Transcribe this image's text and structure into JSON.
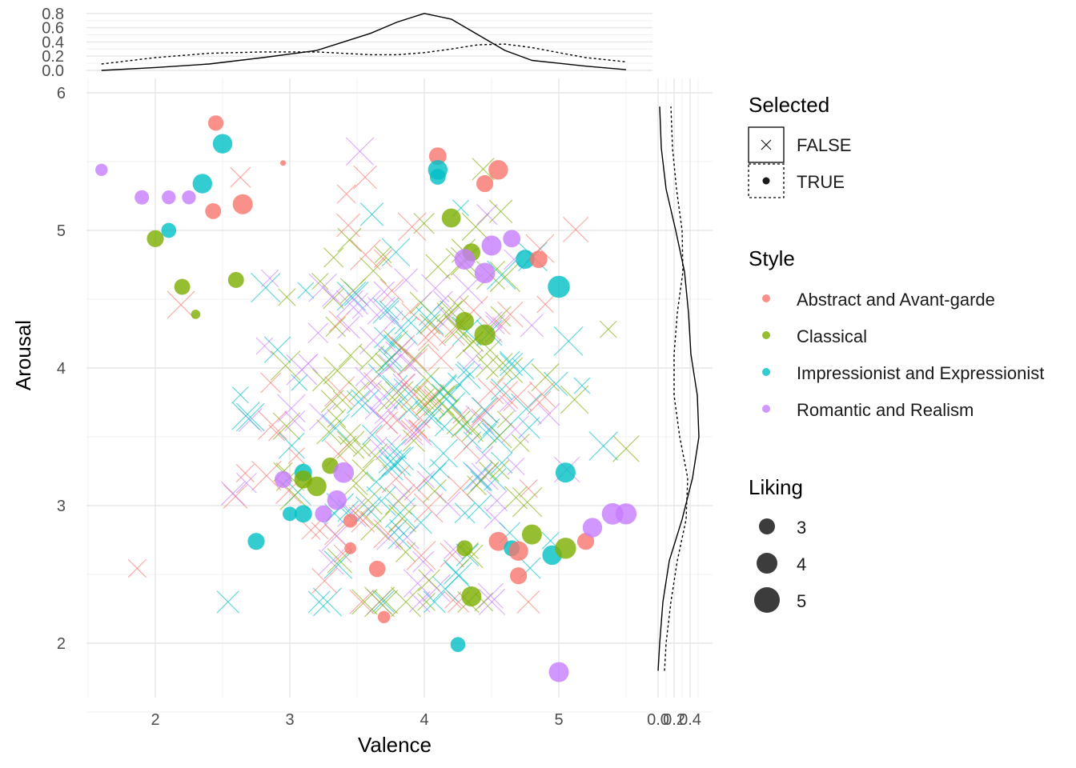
{
  "chart_data": {
    "type": "scatter",
    "xlabel": "Valence",
    "ylabel": "Arousal",
    "xlim": [
      1.5,
      5.6
    ],
    "ylim": [
      1.6,
      6.1
    ],
    "x_ticks": [
      2,
      3,
      4,
      5
    ],
    "y_ticks": [
      2,
      3,
      4,
      5,
      6
    ],
    "grid": true,
    "legend_position": "right",
    "colors": {
      "Abstract and Avant-garde": "#F8766D",
      "Classical": "#7CAE00",
      "Impressionist and Expressionist": "#00BFC4",
      "Romantic and Realism": "#C77CFF"
    },
    "legends": {
      "selected": {
        "title": "Selected",
        "items": [
          {
            "label": "FALSE",
            "shape": "cross",
            "density_line": "solid"
          },
          {
            "label": "TRUE",
            "shape": "circle",
            "density_line": "dotted"
          }
        ]
      },
      "style": {
        "title": "Style",
        "items": [
          "Abstract and Avant-garde",
          "Classical",
          "Impressionist and Expressionist",
          "Romantic and Realism"
        ]
      },
      "liking": {
        "title": "Liking",
        "items": [
          3,
          4,
          5
        ]
      }
    },
    "selected_points": [
      {
        "style": "Romantic and Realism",
        "x": 1.6,
        "y": 5.44,
        "liking": 2.6
      },
      {
        "style": "Abstract and Avant-garde",
        "x": 2.45,
        "y": 5.78,
        "liking": 3.2
      },
      {
        "style": "Impressionist and Expressionist",
        "x": 2.5,
        "y": 5.63,
        "liking": 4.0
      },
      {
        "style": "Abstract and Avant-garde",
        "x": 2.95,
        "y": 5.49,
        "liking": 1.0
      },
      {
        "style": "Romantic and Realism",
        "x": 1.9,
        "y": 5.24,
        "liking": 3.0
      },
      {
        "style": "Romantic and Realism",
        "x": 2.1,
        "y": 5.24,
        "liking": 2.9
      },
      {
        "style": "Romantic and Realism",
        "x": 2.25,
        "y": 5.24,
        "liking": 2.9
      },
      {
        "style": "Impressionist and Expressionist",
        "x": 2.35,
        "y": 5.34,
        "liking": 4.0
      },
      {
        "style": "Abstract and Avant-garde",
        "x": 2.43,
        "y": 5.14,
        "liking": 3.3
      },
      {
        "style": "Abstract and Avant-garde",
        "x": 2.65,
        "y": 5.19,
        "liking": 4.1
      },
      {
        "style": "Classical",
        "x": 2.0,
        "y": 4.94,
        "liking": 3.5
      },
      {
        "style": "Impressionist and Expressionist",
        "x": 2.1,
        "y": 5.0,
        "liking": 3.1
      },
      {
        "style": "Classical",
        "x": 2.2,
        "y": 4.59,
        "liking": 3.3
      },
      {
        "style": "Classical",
        "x": 2.3,
        "y": 4.39,
        "liking": 2.0
      },
      {
        "style": "Classical",
        "x": 2.6,
        "y": 4.64,
        "liking": 3.3
      },
      {
        "style": "Abstract and Avant-garde",
        "x": 4.1,
        "y": 5.54,
        "liking": 3.6
      },
      {
        "style": "Impressionist and Expressionist",
        "x": 4.1,
        "y": 5.44,
        "liking": 4.0
      },
      {
        "style": "Impressionist and Expressionist",
        "x": 4.1,
        "y": 5.39,
        "liking": 3.3
      },
      {
        "style": "Abstract and Avant-garde",
        "x": 4.55,
        "y": 5.44,
        "liking": 4.0
      },
      {
        "style": "Abstract and Avant-garde",
        "x": 4.45,
        "y": 5.34,
        "liking": 3.5
      },
      {
        "style": "Classical",
        "x": 4.2,
        "y": 5.09,
        "liking": 3.9
      },
      {
        "style": "Romantic and Realism",
        "x": 4.65,
        "y": 4.94,
        "liking": 3.6
      },
      {
        "style": "Romantic and Realism",
        "x": 4.5,
        "y": 4.89,
        "liking": 4.1
      },
      {
        "style": "Classical",
        "x": 4.35,
        "y": 4.84,
        "liking": 3.7
      },
      {
        "style": "Romantic and Realism",
        "x": 4.3,
        "y": 4.79,
        "liking": 4.2
      },
      {
        "style": "Impressionist and Expressionist",
        "x": 4.75,
        "y": 4.79,
        "liking": 3.9
      },
      {
        "style": "Abstract and Avant-garde",
        "x": 4.85,
        "y": 4.79,
        "liking": 3.6
      },
      {
        "style": "Romantic and Realism",
        "x": 4.45,
        "y": 4.69,
        "liking": 4.2
      },
      {
        "style": "Impressionist and Expressionist",
        "x": 5.0,
        "y": 4.59,
        "liking": 4.5
      },
      {
        "style": "Classical",
        "x": 4.3,
        "y": 4.34,
        "liking": 3.8
      },
      {
        "style": "Classical",
        "x": 4.45,
        "y": 4.24,
        "liking": 4.3
      },
      {
        "style": "Classical",
        "x": 3.3,
        "y": 3.29,
        "liking": 3.4
      },
      {
        "style": "Romantic and Realism",
        "x": 3.4,
        "y": 3.24,
        "liking": 4.2
      },
      {
        "style": "Impressionist and Expressionist",
        "x": 3.1,
        "y": 3.24,
        "liking": 3.6
      },
      {
        "style": "Classical",
        "x": 3.1,
        "y": 3.19,
        "liking": 3.7
      },
      {
        "style": "Romantic and Realism",
        "x": 2.95,
        "y": 3.19,
        "liking": 3.5
      },
      {
        "style": "Classical",
        "x": 3.2,
        "y": 3.14,
        "liking": 4.0
      },
      {
        "style": "Romantic and Realism",
        "x": 3.35,
        "y": 3.04,
        "liking": 4.0
      },
      {
        "style": "Impressionist and Expressionist",
        "x": 3.0,
        "y": 2.94,
        "liking": 3.0
      },
      {
        "style": "Impressionist and Expressionist",
        "x": 3.1,
        "y": 2.94,
        "liking": 3.6
      },
      {
        "style": "Romantic and Realism",
        "x": 3.25,
        "y": 2.94,
        "liking": 3.5
      },
      {
        "style": "Abstract and Avant-garde",
        "x": 3.45,
        "y": 2.89,
        "liking": 2.9
      },
      {
        "style": "Impressionist and Expressionist",
        "x": 2.75,
        "y": 2.74,
        "liking": 3.5
      },
      {
        "style": "Abstract and Avant-garde",
        "x": 3.45,
        "y": 2.69,
        "liking": 2.5
      },
      {
        "style": "Abstract and Avant-garde",
        "x": 3.65,
        "y": 2.54,
        "liking": 3.4
      },
      {
        "style": "Abstract and Avant-garde",
        "x": 3.7,
        "y": 2.19,
        "liking": 2.6
      },
      {
        "style": "Classical",
        "x": 4.3,
        "y": 2.69,
        "liking": 3.3
      },
      {
        "style": "Classical",
        "x": 4.35,
        "y": 2.34,
        "liking": 4.1
      },
      {
        "style": "Impressionist and Expressionist",
        "x": 4.25,
        "y": 1.99,
        "liking": 3.1
      },
      {
        "style": "Abstract and Avant-garde",
        "x": 4.55,
        "y": 2.74,
        "liking": 3.9
      },
      {
        "style": "Impressionist and Expressionist",
        "x": 4.65,
        "y": 2.69,
        "liking": 3.3
      },
      {
        "style": "Abstract and Avant-garde",
        "x": 4.7,
        "y": 2.67,
        "liking": 4.0
      },
      {
        "style": "Classical",
        "x": 4.8,
        "y": 2.79,
        "liking": 4.1
      },
      {
        "style": "Abstract and Avant-garde",
        "x": 4.7,
        "y": 2.49,
        "liking": 3.5
      },
      {
        "style": "Impressionist and Expressionist",
        "x": 4.95,
        "y": 2.64,
        "liking": 4.0
      },
      {
        "style": "Classical",
        "x": 5.05,
        "y": 2.69,
        "liking": 4.3
      },
      {
        "style": "Abstract and Avant-garde",
        "x": 5.2,
        "y": 2.74,
        "liking": 3.5
      },
      {
        "style": "Romantic and Realism",
        "x": 5.25,
        "y": 2.84,
        "liking": 4.0
      },
      {
        "style": "Romantic and Realism",
        "x": 5.4,
        "y": 2.94,
        "liking": 4.4
      },
      {
        "style": "Romantic and Realism",
        "x": 5.5,
        "y": 2.94,
        "liking": 4.3
      },
      {
        "style": "Impressionist and Expressionist",
        "x": 5.05,
        "y": 3.24,
        "liking": 4.1
      },
      {
        "style": "Romantic and Realism",
        "x": 5.0,
        "y": 1.79,
        "liking": 4.1
      }
    ],
    "unselected_points_approx_count": 350,
    "unselected_distribution": {
      "x_mean": 3.9,
      "x_sd": 0.6,
      "y_mean": 3.7,
      "y_sd": 0.75
    },
    "density_top": {
      "axis_ticks": [
        0.0,
        0.2,
        0.4,
        0.6,
        0.8
      ],
      "ylim": [
        0,
        0.85
      ],
      "x": [
        1.6,
        2.0,
        2.4,
        2.8,
        3.2,
        3.6,
        3.8,
        4.0,
        4.2,
        4.4,
        4.6,
        4.8,
        5.0,
        5.2,
        5.5
      ],
      "false_y": [
        0.0,
        0.04,
        0.09,
        0.18,
        0.28,
        0.52,
        0.68,
        0.8,
        0.72,
        0.5,
        0.28,
        0.14,
        0.1,
        0.06,
        0.01
      ],
      "true_y": [
        0.09,
        0.18,
        0.24,
        0.26,
        0.26,
        0.22,
        0.22,
        0.25,
        0.3,
        0.36,
        0.37,
        0.32,
        0.25,
        0.18,
        0.12
      ]
    },
    "density_right": {
      "axis_ticks": [
        0.0,
        0.2,
        0.4
      ],
      "tick_labels": [
        "0.0",
        "0.2",
        "0.4"
      ],
      "xlim": [
        -0.01,
        0.56
      ],
      "y": [
        1.8,
        2.0,
        2.3,
        2.6,
        2.9,
        3.2,
        3.5,
        3.8,
        4.1,
        4.4,
        4.7,
        5.0,
        5.3,
        5.6,
        5.9
      ],
      "false_x": [
        0.0,
        0.02,
        0.06,
        0.14,
        0.3,
        0.43,
        0.51,
        0.49,
        0.41,
        0.38,
        0.33,
        0.22,
        0.1,
        0.04,
        0.02
      ],
      "true_x": [
        0.08,
        0.1,
        0.16,
        0.24,
        0.35,
        0.37,
        0.27,
        0.2,
        0.2,
        0.24,
        0.31,
        0.3,
        0.23,
        0.18,
        0.16
      ]
    }
  }
}
